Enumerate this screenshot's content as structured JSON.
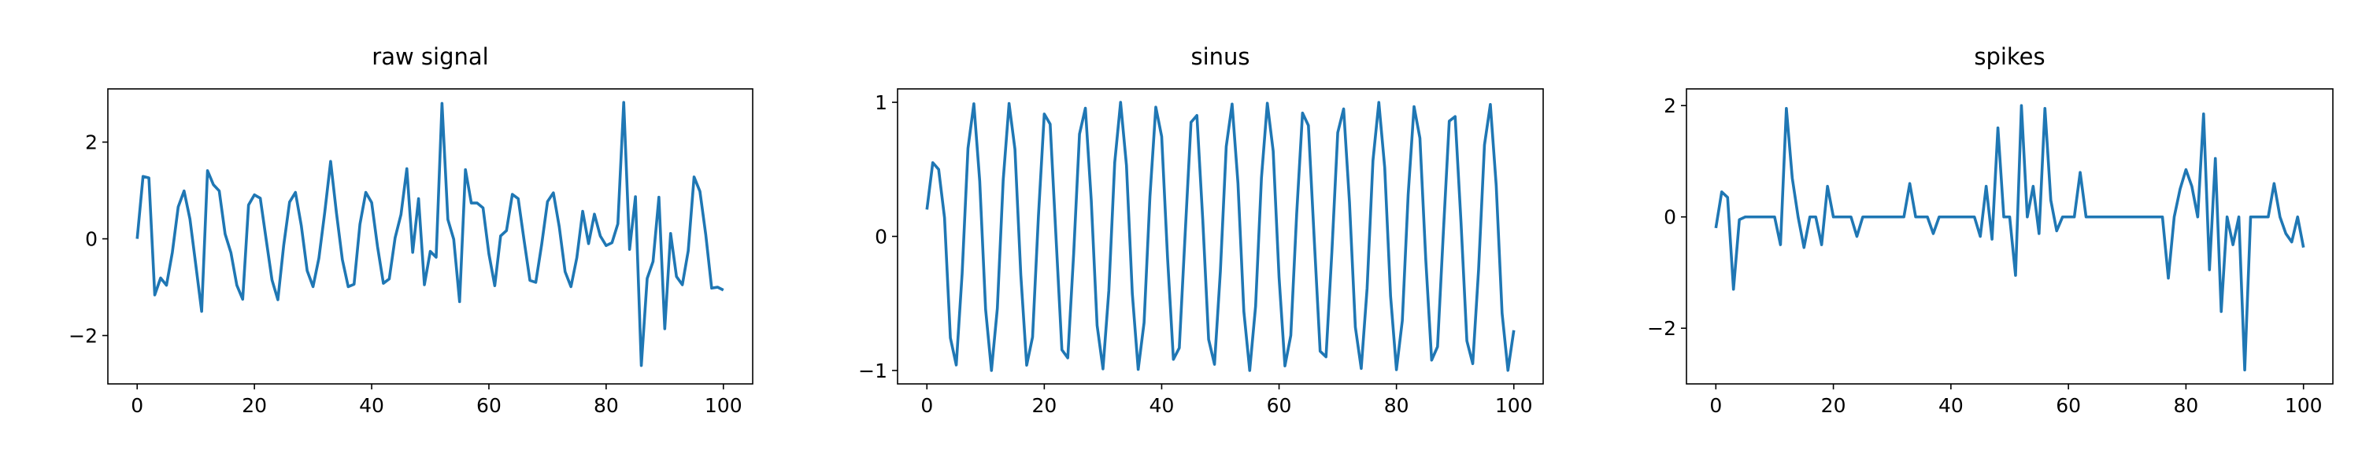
{
  "chart_data": [
    {
      "type": "line",
      "title": "raw signal",
      "color": "#1f77b4",
      "x": [
        0,
        1,
        2,
        3,
        4,
        5,
        6,
        7,
        8,
        9,
        10,
        11,
        12,
        13,
        14,
        15,
        16,
        17,
        18,
        19,
        20,
        21,
        22,
        23,
        24,
        25,
        26,
        27,
        28,
        29,
        30,
        31,
        32,
        33,
        34,
        35,
        36,
        37,
        38,
        39,
        40,
        41,
        42,
        43,
        44,
        45,
        46,
        47,
        48,
        49,
        50,
        51,
        52,
        53,
        54,
        55,
        56,
        57,
        58,
        59,
        60,
        61,
        62,
        63,
        64,
        65,
        66,
        67,
        68,
        69,
        70,
        71,
        72,
        73,
        74,
        75,
        76,
        77,
        78,
        79,
        80,
        81,
        82,
        83,
        84,
        85,
        86,
        87,
        88,
        89,
        90,
        91,
        92,
        93,
        94,
        95,
        96,
        97,
        98,
        99,
        100
      ],
      "values": [
        0,
        1.29,
        1.26,
        -1.16,
        -0.81,
        -0.96,
        -0.28,
        0.66,
        0.99,
        0.41,
        -0.54,
        -1.5,
        1.41,
        1.12,
        0.99,
        0.1,
        -0.29,
        -0.96,
        -1.25,
        0.7,
        0.91,
        0.84,
        -0.01,
        -0.85,
        -1.26,
        -0.13,
        0.76,
        0.96,
        0.27,
        -0.66,
        -0.99,
        -0.4,
        0.55,
        1.6,
        0.53,
        -0.43,
        -0.99,
        -0.94,
        0.3,
        0.96,
        0.75,
        -0.16,
        -0.92,
        -0.83,
        0.02,
        0.5,
        1.45,
        -0.28,
        0.83,
        -0.95,
        -0.26,
        -0.38,
        2.8,
        0.4,
        -0.01,
        -1.3,
        1.43,
        0.74,
        0.74,
        0.64,
        -0.31,
        -0.97,
        0.06,
        0.17,
        0.92,
        0.83,
        -0.03,
        -0.86,
        -0.9,
        -0.12,
        0.77,
        0.95,
        0.25,
        -0.68,
        -0.99,
        -0.39,
        0.57,
        -0.1,
        0.51,
        0.06,
        -0.14,
        -0.08,
        0.31,
        2.82,
        -0.22,
        0.87,
        -2.62,
        -0.82,
        -0.47,
        0.86,
        -1.86,
        0.11,
        -0.78,
        -0.95,
        -0.25,
        1.28,
        0.98,
        0.08,
        -1.02,
        -1.0,
        -1.06
      ],
      "xlim": [
        -5,
        105
      ],
      "ylim": [
        -3,
        3.1
      ],
      "xticks": [
        0,
        20,
        40,
        60,
        80,
        100
      ],
      "yticks": [
        {
          "value": -2,
          "label": "−2"
        },
        0,
        2
      ]
    },
    {
      "type": "line",
      "title": "sinus",
      "color": "#1f77b4",
      "x": [
        0,
        1,
        2,
        3,
        4,
        5,
        6,
        7,
        8,
        9,
        10,
        11,
        12,
        13,
        14,
        15,
        16,
        17,
        18,
        19,
        20,
        21,
        22,
        23,
        24,
        25,
        26,
        27,
        28,
        29,
        30,
        31,
        32,
        33,
        34,
        35,
        36,
        37,
        38,
        39,
        40,
        41,
        42,
        43,
        44,
        45,
        46,
        47,
        48,
        49,
        50,
        51,
        52,
        53,
        54,
        55,
        56,
        57,
        58,
        59,
        60,
        61,
        62,
        63,
        64,
        65,
        66,
        67,
        68,
        69,
        70,
        71,
        72,
        73,
        74,
        75,
        76,
        77,
        78,
        79,
        80,
        81,
        82,
        83,
        84,
        85,
        86,
        87,
        88,
        89,
        90,
        91,
        92,
        93,
        94,
        95,
        96,
        97,
        98,
        99,
        100
      ],
      "values": [
        0.2,
        0.55,
        0.5,
        0.14,
        -0.757,
        -0.959,
        -0.279,
        0.657,
        0.989,
        0.412,
        -0.544,
        -1.0,
        -0.537,
        0.42,
        0.991,
        0.65,
        -0.288,
        -0.961,
        -0.751,
        0.15,
        0.913,
        0.837,
        -0.009,
        -0.846,
        -0.906,
        -0.132,
        0.763,
        0.956,
        0.271,
        -0.664,
        -0.988,
        -0.404,
        0.551,
        1.0,
        0.529,
        -0.428,
        -0.992,
        -0.644,
        0.296,
        0.964,
        0.745,
        -0.158,
        -0.917,
        -0.832,
        0.018,
        0.851,
        0.902,
        0.124,
        -0.768,
        -0.954,
        -0.262,
        0.67,
        0.987,
        0.396,
        -0.559,
        -1.0,
        -0.521,
        0.436,
        0.993,
        0.637,
        -0.305,
        -0.966,
        -0.739,
        0.167,
        0.92,
        0.827,
        -0.027,
        -0.856,
        -0.898,
        -0.115,
        0.774,
        0.951,
        0.254,
        -0.677,
        -0.985,
        -0.388,
        0.566,
        0.999,
        0.514,
        -0.444,
        -0.994,
        -0.629,
        0.313,
        0.968,
        0.733,
        -0.176,
        -0.923,
        -0.823,
        0.035,
        0.86,
        0.894,
        0.106,
        -0.779,
        -0.949,
        -0.245,
        0.683,
        0.984,
        0.38,
        -0.573,
        -0.999,
        -0.7
      ],
      "xlim": [
        -5,
        105
      ],
      "ylim": [
        -1.1,
        1.1
      ],
      "xticks": [
        0,
        20,
        40,
        60,
        80,
        100
      ],
      "yticks": [
        {
          "value": -1,
          "label": "−1"
        },
        0,
        1
      ]
    },
    {
      "type": "line",
      "title": "spikes",
      "color": "#1f77b4",
      "x": [
        0,
        1,
        2,
        3,
        4,
        5,
        6,
        7,
        8,
        9,
        10,
        11,
        12,
        13,
        14,
        15,
        16,
        17,
        18,
        19,
        20,
        21,
        22,
        23,
        24,
        25,
        26,
        27,
        28,
        29,
        30,
        31,
        32,
        33,
        34,
        35,
        36,
        37,
        38,
        39,
        40,
        41,
        42,
        43,
        44,
        45,
        46,
        47,
        48,
        49,
        50,
        51,
        52,
        53,
        54,
        55,
        56,
        57,
        58,
        59,
        60,
        61,
        62,
        63,
        64,
        65,
        66,
        67,
        68,
        69,
        70,
        71,
        72,
        73,
        74,
        75,
        76,
        77,
        78,
        79,
        80,
        81,
        82,
        83,
        84,
        85,
        86,
        87,
        88,
        89,
        90,
        91,
        92,
        93,
        94,
        95,
        96,
        97,
        98,
        99,
        100
      ],
      "values": [
        -0.2,
        0.45,
        0.35,
        -1.3,
        -0.05,
        0,
        0,
        0,
        0,
        0,
        0,
        -0.5,
        1.95,
        0.7,
        0,
        -0.55,
        0,
        0,
        -0.5,
        0.55,
        0,
        0,
        0,
        0,
        -0.35,
        0,
        0,
        0,
        0,
        0,
        0,
        0,
        0,
        0.6,
        0,
        0,
        0,
        -0.3,
        0,
        0,
        0,
        0,
        0,
        0,
        0,
        -0.35,
        0.55,
        -0.4,
        1.6,
        0,
        0,
        -1.05,
        2.0,
        0,
        0.55,
        -0.3,
        1.95,
        0.3,
        -0.25,
        0,
        0,
        0,
        0.8,
        0,
        0,
        0,
        0,
        0,
        0,
        0,
        0,
        0,
        0,
        0,
        0,
        0,
        0,
        -1.1,
        0,
        0.5,
        0.85,
        0.55,
        0,
        1.85,
        -0.95,
        1.05,
        -1.7,
        0,
        -0.5,
        0,
        -2.75,
        0,
        0,
        0,
        0,
        0.6,
        0,
        -0.3,
        -0.45,
        0,
        -0.55
      ],
      "xlim": [
        -5,
        105
      ],
      "ylim": [
        -3,
        2.3
      ],
      "xticks": [
        0,
        20,
        40,
        60,
        80,
        100
      ],
      "yticks": [
        {
          "value": -2,
          "label": "−2"
        },
        0,
        2
      ]
    }
  ]
}
